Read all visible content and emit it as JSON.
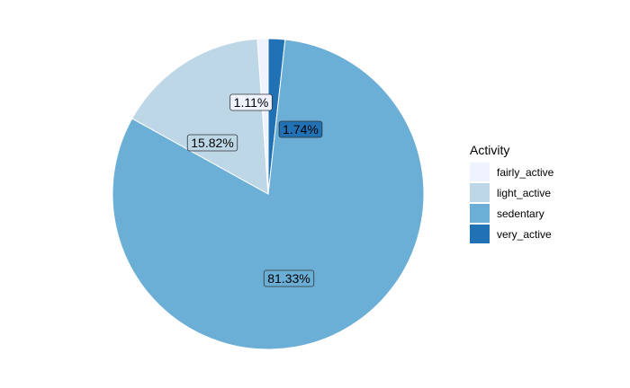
{
  "chart_data": {
    "type": "pie",
    "legend_title": "Activity",
    "legend_position": "right",
    "categories": [
      "fairly_active",
      "light_active",
      "sedentary",
      "very_active"
    ],
    "values": [
      1.11,
      15.82,
      81.33,
      1.74
    ],
    "labels": [
      "1.11%",
      "15.82%",
      "81.33%",
      "1.74%"
    ],
    "colors": [
      "#EFF3FF",
      "#BDD7E7",
      "#6BAED6",
      "#2171B5"
    ],
    "slice_order": [
      "very_active",
      "sedentary",
      "light_active",
      "fairly_active"
    ],
    "direction": "clockwise_from_top"
  }
}
